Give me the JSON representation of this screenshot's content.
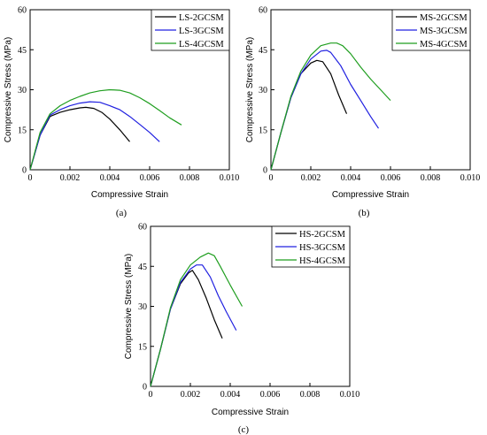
{
  "chart_data": [
    {
      "type": "line",
      "panel_label": "(a)",
      "xlabel": "Compressive Strain",
      "ylabel": "Compressive Stress (MPa)",
      "xlim": [
        0,
        0.01
      ],
      "ylim": [
        0,
        60
      ],
      "xticks": [
        "0",
        "0.002",
        "0.004",
        "0.006",
        "0.008",
        "0.010"
      ],
      "yticks": [
        "0",
        "15",
        "30",
        "45",
        "60"
      ],
      "legend_position": "top-right",
      "series": [
        {
          "name": "LS-2GCSM",
          "color": "#000000",
          "x": [
            0,
            0.0005,
            0.001,
            0.0015,
            0.002,
            0.0025,
            0.0028,
            0.0032,
            0.0036,
            0.004,
            0.0045,
            0.005
          ],
          "y": [
            0,
            13,
            20,
            21.5,
            22.5,
            23.2,
            23.4,
            23,
            21.5,
            19,
            15,
            10.5
          ]
        },
        {
          "name": "LS-3GCSM",
          "color": "#2020e0",
          "x": [
            0,
            0.0005,
            0.001,
            0.0015,
            0.002,
            0.0025,
            0.003,
            0.0035,
            0.004,
            0.0045,
            0.005,
            0.0055,
            0.006,
            0.0065
          ],
          "y": [
            0,
            13,
            20.5,
            22.5,
            24,
            25,
            25.5,
            25.3,
            24,
            22.5,
            20,
            17,
            14,
            10.5
          ]
        },
        {
          "name": "LS-4GCSM",
          "color": "#1f9e1f",
          "x": [
            0,
            0.0005,
            0.001,
            0.0015,
            0.002,
            0.0025,
            0.003,
            0.0035,
            0.004,
            0.0045,
            0.005,
            0.0055,
            0.006,
            0.0065,
            0.007,
            0.0076
          ],
          "y": [
            0,
            14,
            21,
            24,
            26,
            27.5,
            28.8,
            29.6,
            30,
            29.8,
            28.8,
            27,
            24.8,
            22.2,
            19.5,
            16.8
          ]
        }
      ]
    },
    {
      "type": "line",
      "panel_label": "(b)",
      "xlabel": "Compressive Strain",
      "ylabel": "Compressive Stress (MPa)",
      "xlim": [
        0,
        0.01
      ],
      "ylim": [
        0,
        60
      ],
      "xticks": [
        "0",
        "0.002",
        "0.004",
        "0.006",
        "0.008",
        "0.010"
      ],
      "yticks": [
        "0",
        "15",
        "30",
        "45",
        "60"
      ],
      "legend_position": "top-right",
      "series": [
        {
          "name": "MS-2GCSM",
          "color": "#000000",
          "x": [
            0,
            0.0005,
            0.001,
            0.0015,
            0.002,
            0.0023,
            0.0026,
            0.003,
            0.0034,
            0.0038
          ],
          "y": [
            0,
            14,
            27,
            36,
            40,
            41,
            40.5,
            36,
            28,
            21
          ]
        },
        {
          "name": "MS-3GCSM",
          "color": "#2020e0",
          "x": [
            0,
            0.0005,
            0.001,
            0.0015,
            0.002,
            0.0025,
            0.0028,
            0.003,
            0.0035,
            0.004,
            0.0045,
            0.005,
            0.0054
          ],
          "y": [
            0,
            14,
            27,
            36,
            41.5,
            44.5,
            44.8,
            44,
            39,
            32,
            26,
            20,
            15.5
          ]
        },
        {
          "name": "MS-4GCSM",
          "color": "#1f9e1f",
          "x": [
            0,
            0.0005,
            0.001,
            0.0015,
            0.002,
            0.0025,
            0.003,
            0.0033,
            0.0036,
            0.004,
            0.0045,
            0.005,
            0.0055,
            0.006
          ],
          "y": [
            0,
            14,
            27.5,
            37,
            43,
            46.5,
            47.5,
            47.5,
            46.5,
            43.5,
            38.5,
            34,
            30,
            26
          ]
        }
      ]
    },
    {
      "type": "line",
      "panel_label": "(c)",
      "xlabel": "Compressive Strain",
      "ylabel": "Compressive Stress (MPa)",
      "xlim": [
        0,
        0.01
      ],
      "ylim": [
        0,
        60
      ],
      "xticks": [
        "0",
        "0.002",
        "0.004",
        "0.006",
        "0.008",
        "0.010"
      ],
      "yticks": [
        "0",
        "15",
        "30",
        "45",
        "60"
      ],
      "legend_position": "top-right",
      "series": [
        {
          "name": "HS-2GCSM",
          "color": "#000000",
          "x": [
            0,
            0.0005,
            0.001,
            0.0015,
            0.0019,
            0.0021,
            0.0024,
            0.0028,
            0.0032,
            0.0036
          ],
          "y": [
            0,
            14,
            29,
            38.5,
            42.5,
            43.5,
            40,
            33,
            25,
            18
          ]
        },
        {
          "name": "HS-3GCSM",
          "color": "#2020e0",
          "x": [
            0,
            0.0005,
            0.001,
            0.0015,
            0.002,
            0.0023,
            0.0026,
            0.003,
            0.0034,
            0.0038,
            0.0043
          ],
          "y": [
            0,
            14,
            29,
            39,
            44,
            45.5,
            45.5,
            41,
            34,
            28,
            21
          ]
        },
        {
          "name": "HS-4GCSM",
          "color": "#1f9e1f",
          "x": [
            0,
            0.0005,
            0.001,
            0.0015,
            0.002,
            0.0025,
            0.0029,
            0.0032,
            0.0035,
            0.004,
            0.0046
          ],
          "y": [
            0,
            14,
            29.5,
            40,
            45.5,
            48.5,
            50,
            49,
            45,
            38,
            30
          ]
        }
      ]
    }
  ]
}
